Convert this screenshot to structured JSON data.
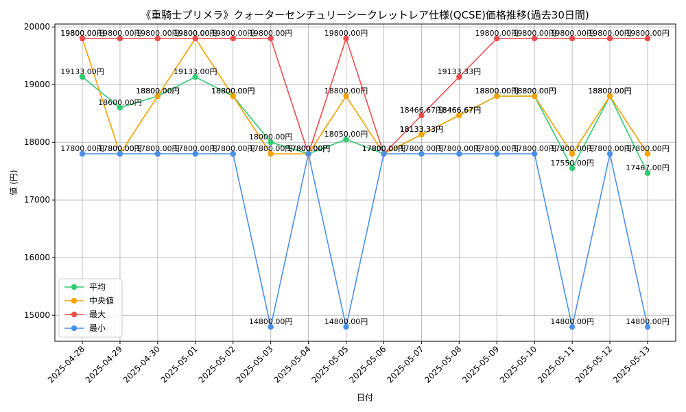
{
  "chart_data": {
    "type": "line",
    "title": "《重騎士プリメラ》クォーターセンチュリーシークレットレア仕様(QCSE)価格推移(過去30日間)",
    "xlabel": "日付",
    "ylabel": "値 (円)",
    "ylim": [
      14550,
      20050
    ],
    "yticks": [
      15000,
      16000,
      17000,
      18000,
      19000,
      20000
    ],
    "grid": true,
    "legend_position": "lower-left",
    "value_suffix": "円",
    "categories": [
      "2025-04-28",
      "2025-04-29",
      "2025-04-30",
      "2025-05-01",
      "2025-05-02",
      "2025-05-03",
      "2025-05-04",
      "2025-05-05",
      "2025-05-06",
      "2025-05-07",
      "2025-05-08",
      "2025-05-09",
      "2025-05-10",
      "2025-05-11",
      "2025-05-12",
      "2025-05-13"
    ],
    "series": [
      {
        "name": "平均",
        "color": "#2ecc71",
        "values": [
          19133,
          18600,
          18800,
          19133,
          18800,
          18000,
          17800,
          18050,
          17800,
          18133.33,
          18466.67,
          18800,
          18800,
          17550,
          18800,
          17467
        ]
      },
      {
        "name": "中央値",
        "color": "#f5a300",
        "values": [
          19800,
          17800,
          18800,
          19800,
          18800,
          17800,
          17800,
          18800,
          17800,
          18133.33,
          18466.67,
          18800,
          18800,
          17800,
          18800,
          17800
        ]
      },
      {
        "name": "最大",
        "color": "#ef4d4d",
        "values": [
          19800,
          19800,
          19800,
          19800,
          19800,
          19800,
          17800,
          19800,
          17800,
          18466.67,
          19133.33,
          19800,
          19800,
          19800,
          19800,
          19800
        ]
      },
      {
        "name": "最小",
        "color": "#4a90e8",
        "values": [
          17800,
          17800,
          17800,
          17800,
          17800,
          14800,
          17800,
          14800,
          17800,
          17800,
          17800,
          17800,
          17800,
          14800,
          17800,
          14800
        ]
      }
    ]
  }
}
